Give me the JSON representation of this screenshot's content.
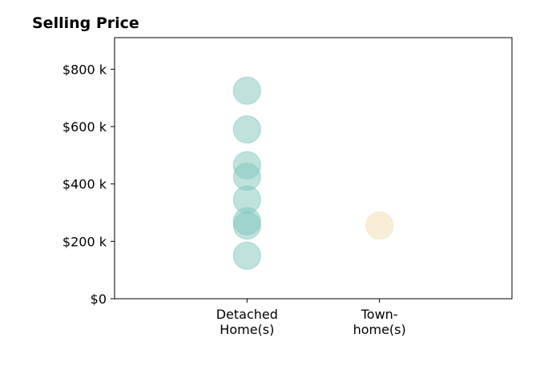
{
  "chart_data": {
    "type": "scatter",
    "title": "Selling Price",
    "xlabel": "",
    "ylabel": "",
    "categories": [
      [
        "Detached",
        "Home(s)"
      ],
      [
        "Town-",
        "home(s)"
      ]
    ],
    "yticks": [
      {
        "value": 0,
        "label": "$0"
      },
      {
        "value": 200000,
        "label": "$200 k"
      },
      {
        "value": 400000,
        "label": "$400 k"
      },
      {
        "value": 600000,
        "label": "$600 k"
      },
      {
        "value": 800000,
        "label": "$800 k"
      }
    ],
    "ylim": [
      0,
      910000
    ],
    "xlim": [
      -1,
      2
    ],
    "grid": false,
    "series": [
      {
        "category_index": 0,
        "color": "#7fc6bc",
        "values": [
          725000,
          590000,
          465000,
          425000,
          345000,
          270000,
          255000,
          150000
        ]
      },
      {
        "category_index": 1,
        "color": "#f2deb0",
        "values": [
          255000
        ]
      }
    ]
  }
}
